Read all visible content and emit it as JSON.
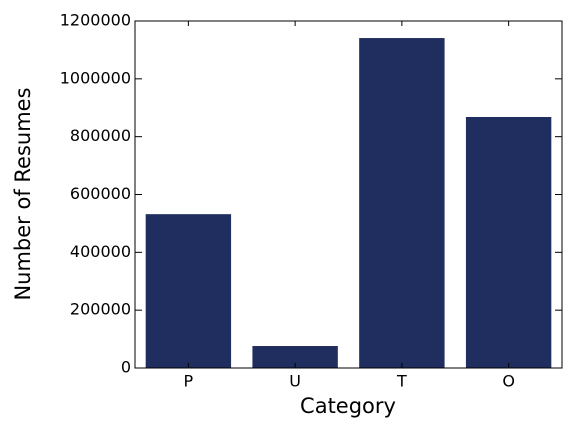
{
  "chart_data": {
    "type": "bar",
    "xlabel": "Category",
    "ylabel": "Number of Resumes",
    "categories": [
      "P",
      "U",
      "T",
      "O"
    ],
    "values": [
      532000,
      76000,
      1141000,
      868000
    ],
    "color": "#1f2d5f",
    "ylim": [
      0,
      1200000
    ],
    "yticks": [
      0,
      200000,
      400000,
      600000,
      800000,
      1000000,
      1200000
    ],
    "grid": false
  }
}
